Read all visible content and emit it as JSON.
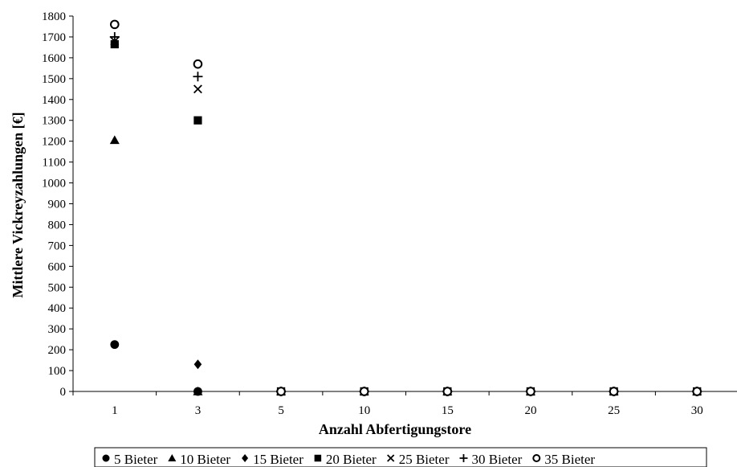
{
  "chart_data": {
    "type": "scatter",
    "xlabel": "Anzahl Abfertigungstore",
    "ylabel": "Mittlere Vickreyzahlungen [€]",
    "categories": [
      "1",
      "3",
      "5",
      "10",
      "15",
      "20",
      "25",
      "30"
    ],
    "y_ticks": [
      "0",
      "100",
      "200",
      "300",
      "400",
      "500",
      "600",
      "700",
      "800",
      "900",
      "1000",
      "1100",
      "1200",
      "1300",
      "1400",
      "1500",
      "1600",
      "1700",
      "1800"
    ],
    "ylim": [
      0,
      1800
    ],
    "grid": false,
    "legend_position": "bottom",
    "series": [
      {
        "name": "5 Bieter",
        "marker": "circle-filled",
        "values": [
          225,
          0,
          0,
          0,
          0,
          0,
          0,
          0
        ]
      },
      {
        "name": "10 Bieter",
        "marker": "triangle-filled",
        "values": [
          1205,
          0,
          0,
          0,
          0,
          0,
          0,
          0
        ]
      },
      {
        "name": "15 Bieter",
        "marker": "diamond-filled",
        "values": [
          1670,
          130,
          0,
          0,
          0,
          0,
          0,
          0
        ]
      },
      {
        "name": "20 Bieter",
        "marker": "square-filled",
        "values": [
          1665,
          1300,
          0,
          0,
          0,
          0,
          0,
          0
        ]
      },
      {
        "name": "25 Bieter",
        "marker": "x",
        "values": [
          1680,
          1450,
          0,
          0,
          0,
          0,
          0,
          0
        ]
      },
      {
        "name": "30 Bieter",
        "marker": "plus",
        "values": [
          1700,
          1510,
          0,
          0,
          0,
          0,
          0,
          0
        ]
      },
      {
        "name": "35 Bieter",
        "marker": "circle-open",
        "values": [
          1760,
          1570,
          0,
          0,
          0,
          0,
          0,
          0
        ]
      }
    ]
  }
}
